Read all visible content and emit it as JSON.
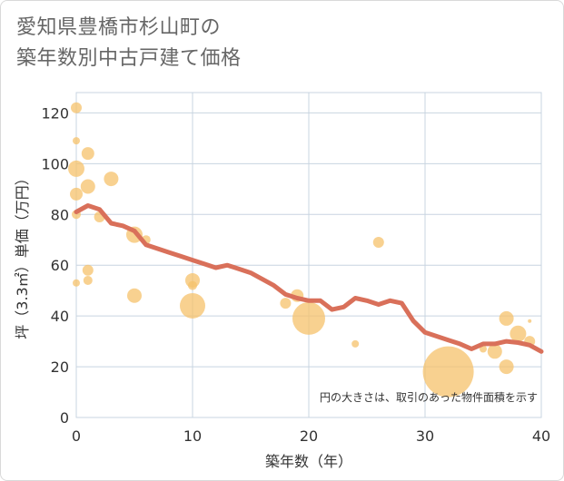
{
  "chart_data": {
    "type": "scatter",
    "title_line1": "愛知県豊橋市杉山町の",
    "title_line2": "築年数別中古戸建て価格",
    "xlabel": "築年数（年）",
    "ylabel": "坪（3.3㎡）単価（万円）",
    "xlim": [
      0,
      40
    ],
    "ylim": [
      0,
      128
    ],
    "xticks": [
      0,
      10,
      20,
      30,
      40
    ],
    "yticks": [
      0,
      20,
      40,
      60,
      80,
      100,
      120
    ],
    "note": "円の大きさは、取引のあった物件面積を示す",
    "colors": {
      "bubble": "#f5c26b",
      "line": "#d9705a",
      "grid": "#c8d4e0"
    },
    "bubbles": [
      {
        "x": 0,
        "y": 122,
        "r": 6
      },
      {
        "x": 0,
        "y": 109,
        "r": 4
      },
      {
        "x": 0,
        "y": 98,
        "r": 9
      },
      {
        "x": 0,
        "y": 88,
        "r": 7
      },
      {
        "x": 0,
        "y": 80,
        "r": 5
      },
      {
        "x": 0,
        "y": 53,
        "r": 4
      },
      {
        "x": 1,
        "y": 104,
        "r": 7
      },
      {
        "x": 1,
        "y": 91,
        "r": 8
      },
      {
        "x": 1,
        "y": 58,
        "r": 6
      },
      {
        "x": 1,
        "y": 54,
        "r": 5
      },
      {
        "x": 2,
        "y": 79,
        "r": 6
      },
      {
        "x": 3,
        "y": 94,
        "r": 8
      },
      {
        "x": 5,
        "y": 72,
        "r": 9
      },
      {
        "x": 5,
        "y": 48,
        "r": 8
      },
      {
        "x": 6,
        "y": 70,
        "r": 5
      },
      {
        "x": 10,
        "y": 54,
        "r": 8
      },
      {
        "x": 10,
        "y": 52,
        "r": 5
      },
      {
        "x": 10,
        "y": 44,
        "r": 14
      },
      {
        "x": 18,
        "y": 45,
        "r": 6
      },
      {
        "x": 19,
        "y": 48,
        "r": 7
      },
      {
        "x": 20,
        "y": 39,
        "r": 18
      },
      {
        "x": 24,
        "y": 29,
        "r": 4
      },
      {
        "x": 26,
        "y": 69,
        "r": 6
      },
      {
        "x": 32,
        "y": 18,
        "r": 28
      },
      {
        "x": 35,
        "y": 27,
        "r": 4
      },
      {
        "x": 36,
        "y": 26,
        "r": 8
      },
      {
        "x": 37,
        "y": 39,
        "r": 8
      },
      {
        "x": 37,
        "y": 20,
        "r": 8
      },
      {
        "x": 38,
        "y": 33,
        "r": 9
      },
      {
        "x": 39,
        "y": 38,
        "r": 2
      },
      {
        "x": 39,
        "y": 30,
        "r": 6
      }
    ],
    "trend_line": {
      "x": [
        0,
        1,
        2,
        3,
        4,
        5,
        6,
        7,
        8,
        9,
        10,
        11,
        12,
        13,
        14,
        15,
        16,
        17,
        18,
        19,
        20,
        21,
        22,
        23,
        24,
        25,
        26,
        27,
        28,
        29,
        30,
        31,
        32,
        33,
        34,
        35,
        36,
        37,
        38,
        39,
        40
      ],
      "y": [
        81,
        83.5,
        82,
        76.5,
        75.5,
        73.5,
        68,
        66.5,
        65,
        63.5,
        62,
        60.5,
        59,
        60,
        58.5,
        57,
        54.5,
        52,
        48.5,
        47,
        46,
        46,
        42.5,
        43.5,
        47,
        46,
        44.5,
        46,
        45,
        38,
        33.5,
        32,
        30.5,
        29,
        27,
        29,
        29,
        30,
        29.5,
        28.5,
        26
      ]
    }
  }
}
